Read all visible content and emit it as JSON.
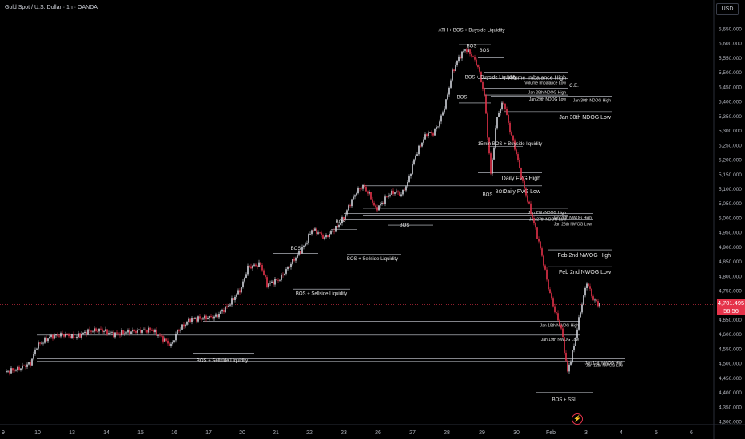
{
  "header": {
    "title": "Gold Spot / U.S. Dollar · 1h · OANDA"
  },
  "price_scale": {
    "currency": "USD"
  },
  "current_price": {
    "value": "4,701.495",
    "countdown": "56:56",
    "color": "#e5334a"
  },
  "logo": {
    "icon": "bolt-icon"
  },
  "colors": {
    "bull": "#d1d4dc",
    "bear": "#e5334a",
    "background": "#000000",
    "level_line": "#d1d4dc"
  },
  "chart_data": {
    "type": "candlestick",
    "title": "Gold Spot / U.S. Dollar · 1h · OANDA",
    "ylim": [
      4300,
      5700
    ],
    "y_ticks": [
      "5,650.000",
      "5,600.000",
      "5,550.000",
      "5,500.000",
      "5,450.000",
      "5,400.000",
      "5,350.000",
      "5,300.000",
      "5,250.000",
      "5,200.000",
      "5,150.000",
      "5,100.000",
      "5,050.000",
      "5,000.000",
      "4,950.000",
      "4,900.000",
      "4,850.000",
      "4,800.000",
      "4,750.000",
      "4,700.000",
      "4,650.000",
      "4,600.000",
      "4,550.000",
      "4,500.000",
      "4,450.000",
      "4,400.000",
      "4,350.000",
      "4,300.000"
    ],
    "x_ticks": [
      "9",
      "10",
      "13",
      "14",
      "15",
      "16",
      "17",
      "20",
      "21",
      "22",
      "23",
      "26",
      "27",
      "28",
      "29",
      "30",
      "Feb",
      "3",
      "4",
      "5",
      "6"
    ],
    "close_path": [
      [
        0,
        4470
      ],
      [
        2,
        4480
      ],
      [
        4,
        4500
      ],
      [
        5,
        4560
      ],
      [
        7,
        4590
      ],
      [
        9,
        4600
      ],
      [
        11,
        4590
      ],
      [
        13,
        4610
      ],
      [
        15,
        4615
      ],
      [
        17,
        4600
      ],
      [
        20,
        4610
      ],
      [
        23,
        4615
      ],
      [
        25,
        4580
      ],
      [
        26,
        4560
      ],
      [
        27,
        4610
      ],
      [
        29,
        4650
      ],
      [
        31,
        4655
      ],
      [
        33,
        4660
      ],
      [
        35,
        4700
      ],
      [
        37,
        4760
      ],
      [
        38,
        4830
      ],
      [
        40,
        4840
      ],
      [
        41,
        4770
      ],
      [
        43,
        4790
      ],
      [
        45,
        4850
      ],
      [
        47,
        4910
      ],
      [
        48,
        4960
      ],
      [
        49,
        4950
      ],
      [
        50,
        4930
      ],
      [
        52,
        4970
      ],
      [
        53,
        5000
      ],
      [
        54,
        5050
      ],
      [
        55,
        5090
      ],
      [
        56,
        5110
      ],
      [
        57,
        5080
      ],
      [
        58,
        5030
      ],
      [
        59,
        5050
      ],
      [
        60,
        5080
      ],
      [
        61,
        5090
      ],
      [
        62,
        5080
      ],
      [
        63,
        5120
      ],
      [
        64,
        5200
      ],
      [
        65,
        5250
      ],
      [
        66,
        5290
      ],
      [
        67,
        5290
      ],
      [
        68,
        5330
      ],
      [
        69,
        5400
      ],
      [
        70,
        5500
      ],
      [
        71,
        5550
      ],
      [
        72,
        5580
      ],
      [
        73,
        5560
      ],
      [
        74,
        5520
      ],
      [
        75,
        5420
      ],
      [
        76,
        5150
      ],
      [
        77,
        5350
      ],
      [
        78,
        5400
      ],
      [
        79,
        5300
      ],
      [
        80,
        5220
      ],
      [
        81,
        5120
      ],
      [
        82,
        5040
      ],
      [
        83,
        4960
      ],
      [
        84,
        4870
      ],
      [
        85,
        4760
      ],
      [
        86,
        4680
      ],
      [
        87,
        4620
      ],
      [
        88,
        4470
      ],
      [
        89,
        4560
      ],
      [
        90,
        4680
      ],
      [
        91,
        4780
      ],
      [
        92,
        4720
      ],
      [
        93,
        4701
      ]
    ],
    "levels": [
      {
        "label": "Volume Imbalance High",
        "price": 5500,
        "x_start": 75,
        "x_end": 88
      },
      {
        "label": "Volume Imbalance Low",
        "price": 5478,
        "x_start": 74,
        "x_end": 88
      },
      {
        "label": "Jan 29th NDOG High",
        "price": 5445,
        "x_start": 75,
        "x_end": 88
      },
      {
        "label": "Jan 30th NDOG High",
        "price": 5418,
        "x_start": 76,
        "x_end": 95
      },
      {
        "label": "Jan 29th NDOG Low",
        "price": 5422,
        "x_start": 75,
        "x_end": 88
      },
      {
        "label": "Jan 30th NDOG Low",
        "price": 5365,
        "x_start": 78,
        "x_end": 95
      },
      {
        "label": "Daily FVG High",
        "price": 5155,
        "x_start": 74,
        "x_end": 84
      },
      {
        "label": "Daily FVG Low",
        "price": 5110,
        "x_start": 56,
        "x_end": 84
      },
      {
        "label": "Jan 27th NDOG High",
        "price": 5033,
        "x_start": 56,
        "x_end": 88
      },
      {
        "label": "Jan 27th NDOG Low",
        "price": 5010,
        "x_start": 56,
        "x_end": 88
      },
      {
        "label": "Jan 26th NWOG High",
        "price": 5015,
        "x_start": 53,
        "x_end": 92
      },
      {
        "label": "Jan 26th NWOG Low",
        "price": 4993,
        "x_start": 53,
        "x_end": 92
      },
      {
        "label": "Feb 2nd NWOG High",
        "price": 4890,
        "x_start": 85,
        "x_end": 95
      },
      {
        "label": "Feb 2nd NWOG Low",
        "price": 4832,
        "x_start": 85,
        "x_end": 95
      },
      {
        "label": "Jan 19th NWOG High",
        "price": 4645,
        "x_start": 31,
        "x_end": 90
      },
      {
        "label": "Jan 19th NWOG Low",
        "price": 4597,
        "x_start": 5,
        "x_end": 90
      },
      {
        "label": "Jan 12th NWOG High",
        "price": 4515,
        "x_start": 5,
        "x_end": 97
      },
      {
        "label": "Jan 12th NWOG Low",
        "price": 4508,
        "x_start": 5,
        "x_end": 97
      }
    ],
    "annotations": [
      {
        "text": "ATH + BOS + Buyside Liquidity",
        "x": 73,
        "price": 5640
      },
      {
        "text": "BOS",
        "x": 73,
        "price": 5585
      },
      {
        "text": "BOS",
        "x": 75,
        "price": 5570
      },
      {
        "text": "BOS + Buyside Liquidity",
        "x": 76,
        "price": 5478
      },
      {
        "text": "C.E.",
        "x": 89,
        "price": 5450
      },
      {
        "text": "BOS",
        "x": 71.5,
        "price": 5410
      },
      {
        "text": "15min BOS + Buyside liquidity",
        "x": 79,
        "price": 5250
      },
      {
        "text": "BOS",
        "x": 75.5,
        "price": 5075
      },
      {
        "text": "BOS",
        "x": 77.5,
        "price": 5085
      },
      {
        "text": "BOS",
        "x": 62.5,
        "price": 4970
      },
      {
        "text": "BOS",
        "x": 52.5,
        "price": 4980
      },
      {
        "text": "BOS + Sellside Liquidity",
        "x": 57.5,
        "price": 4855
      },
      {
        "text": "BOS",
        "x": 45.5,
        "price": 4890
      },
      {
        "text": "BOS + Sellside Liquidity",
        "x": 49.5,
        "price": 4735
      },
      {
        "text": "BOS + Sellside Liquidity",
        "x": 34,
        "price": 4505
      },
      {
        "text": "BOS + SSL",
        "x": 87.5,
        "price": 4370
      }
    ],
    "bos_lines": [
      {
        "price": 5595,
        "x1": 71,
        "x2": 76
      },
      {
        "price": 5550,
        "x1": 74,
        "x2": 78
      },
      {
        "price": 5395,
        "x1": 71,
        "x2": 76
      },
      {
        "price": 5245,
        "x1": 75.5,
        "x2": 81
      },
      {
        "price": 5075,
        "x1": 74,
        "x2": 78
      },
      {
        "price": 4975,
        "x1": 60,
        "x2": 67
      },
      {
        "price": 4960,
        "x1": 51,
        "x2": 55
      },
      {
        "price": 4875,
        "x1": 53.5,
        "x2": 62
      },
      {
        "price": 4878,
        "x1": 42,
        "x2": 49
      },
      {
        "price": 4755,
        "x1": 45,
        "x2": 54
      },
      {
        "price": 4535,
        "x1": 29.5,
        "x2": 39
      },
      {
        "price": 4400,
        "x1": 83,
        "x2": 92
      }
    ]
  }
}
